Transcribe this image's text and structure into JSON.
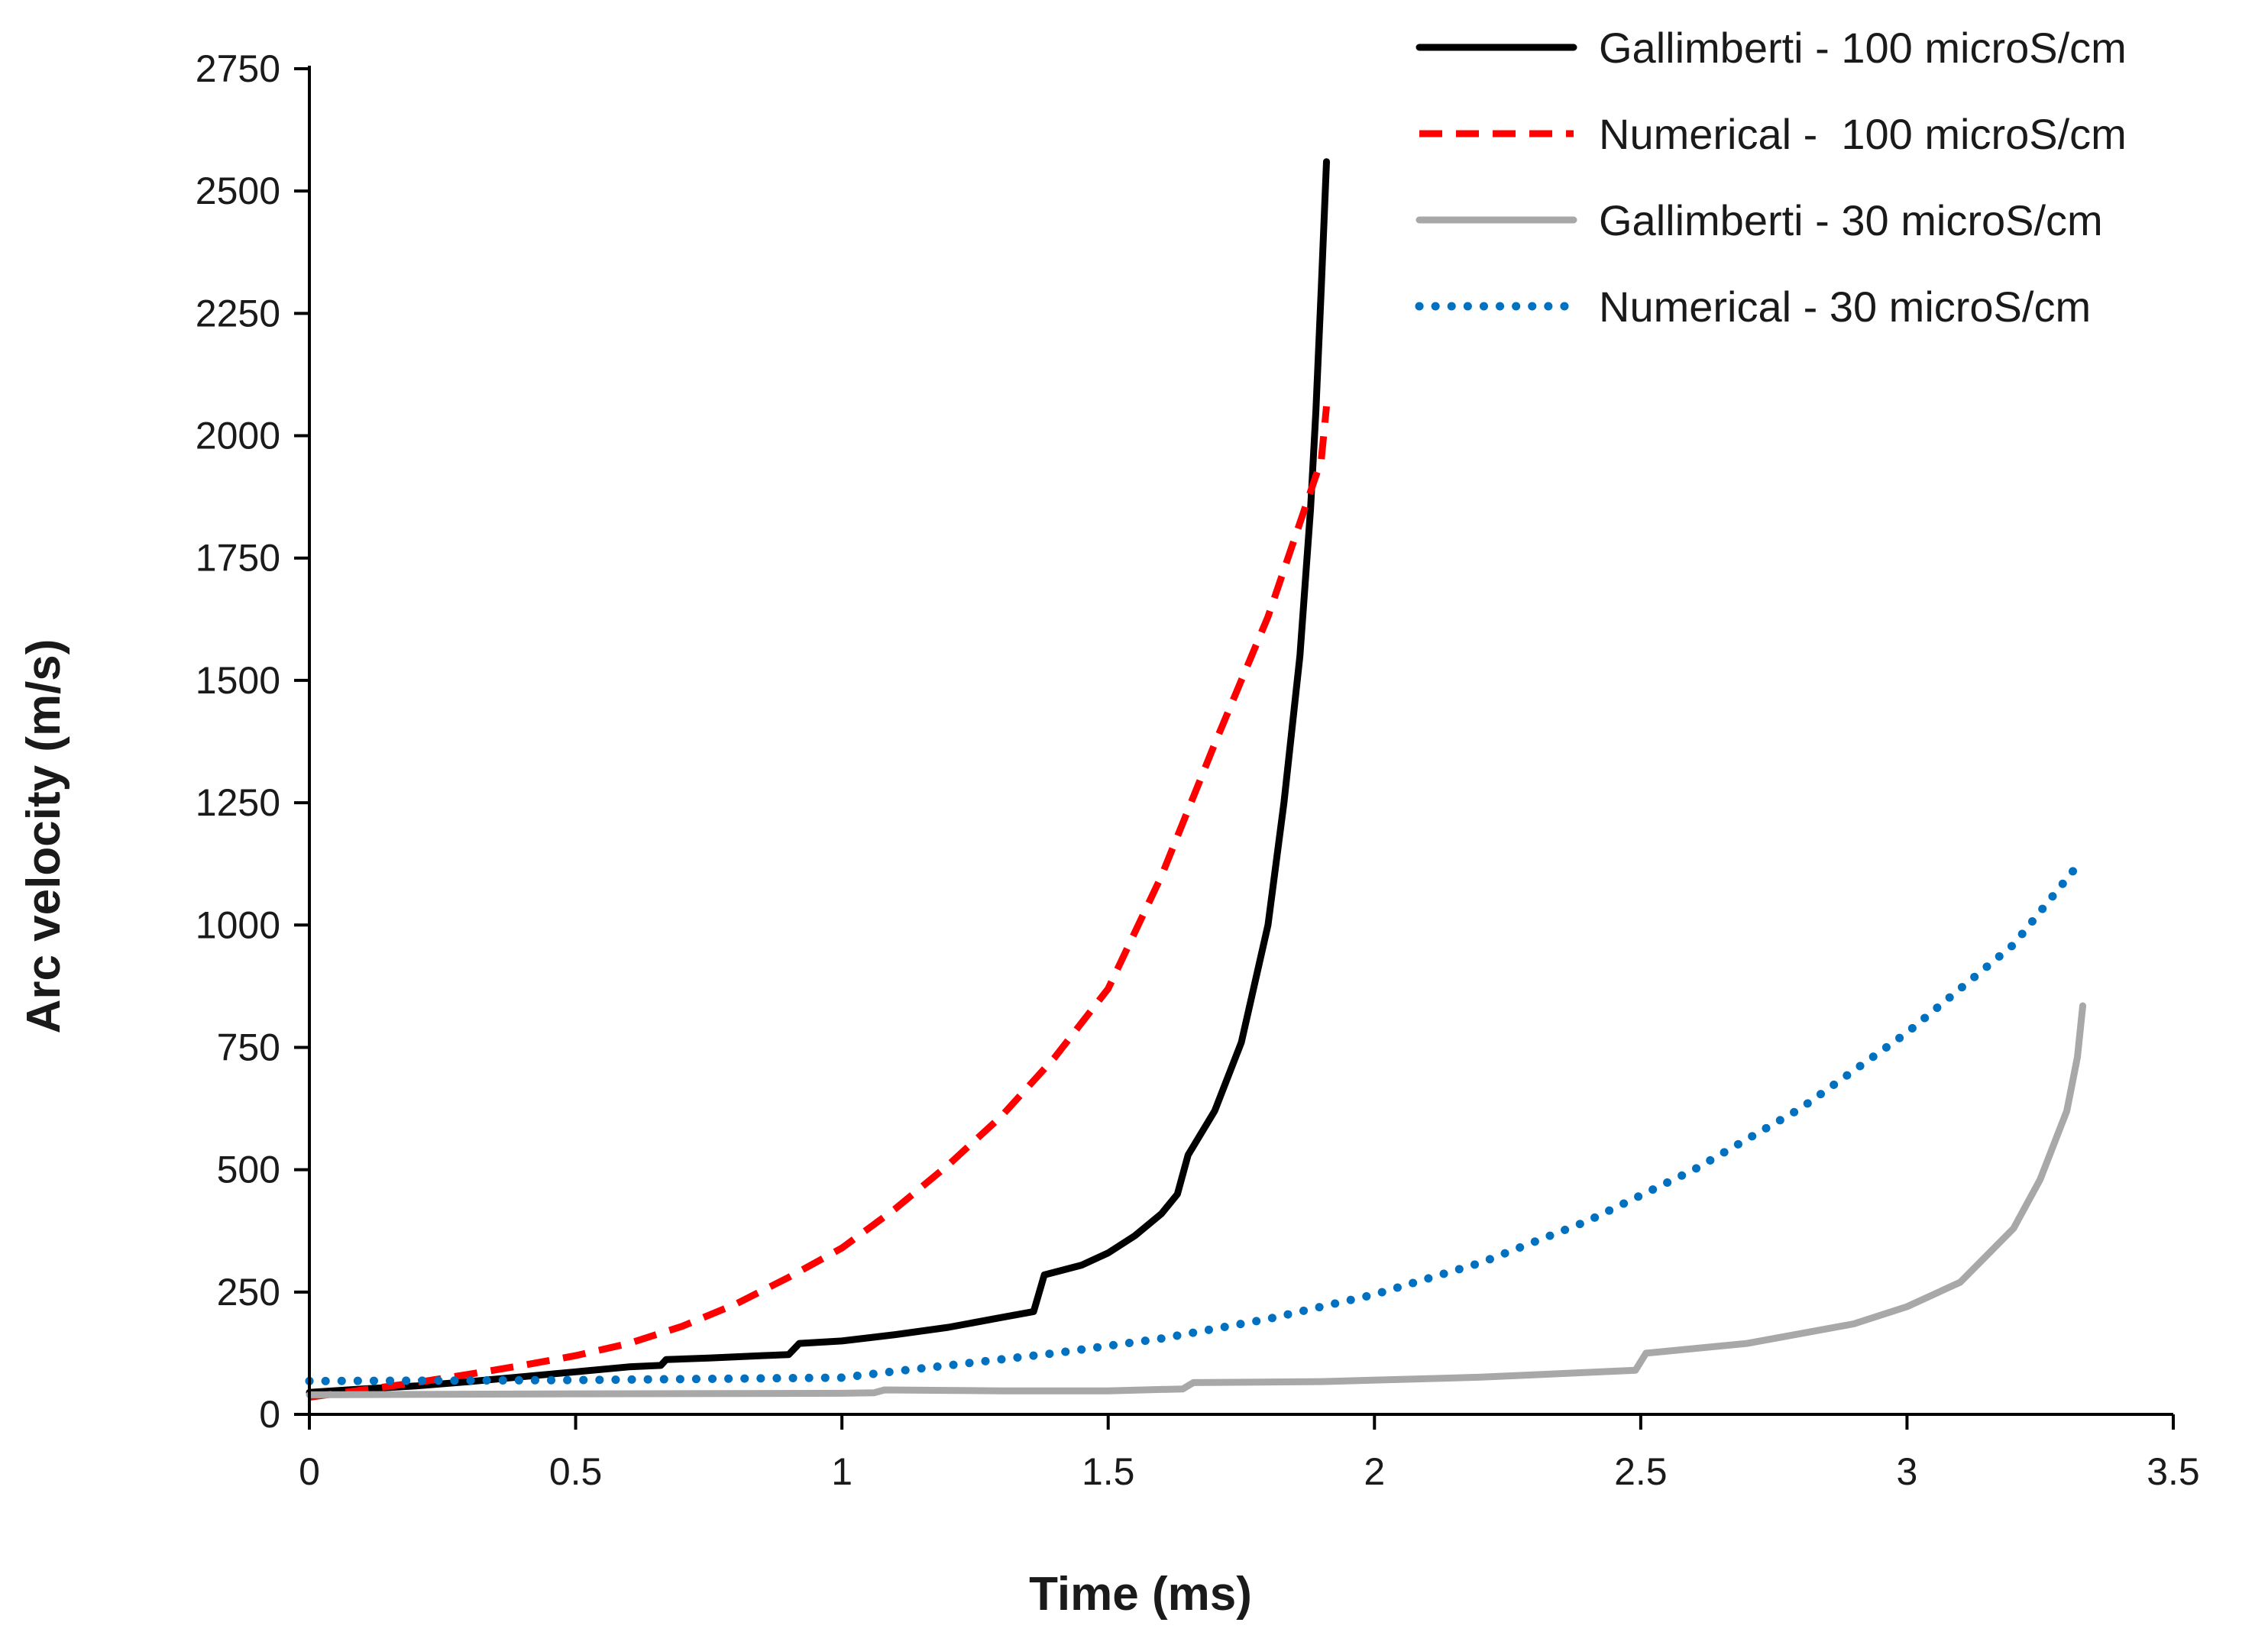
{
  "chart_data": {
    "type": "line",
    "title": "",
    "xlabel": "Time (ms)",
    "ylabel": "Arc velocity (m/s)",
    "xlim": [
      0,
      3.5
    ],
    "ylim": [
      0,
      2750
    ],
    "xticks": [
      0,
      0.5,
      1,
      1.5,
      2,
      2.5,
      3,
      3.5
    ],
    "xtick_labels": [
      "0",
      "0.5",
      "1",
      "1.5",
      "2",
      "2.5",
      "3",
      "3.5"
    ],
    "yticks": [
      0,
      250,
      500,
      750,
      1000,
      1250,
      1500,
      1750,
      2000,
      2250,
      2500,
      2750
    ],
    "ytick_labels": [
      "0",
      "250",
      "500",
      "750",
      "1000",
      "1250",
      "1500",
      "1750",
      "2000",
      "2250",
      "2500",
      "2750"
    ],
    "grid": false,
    "legend_position": "top-right",
    "series": [
      {
        "name": "Gallimberti - 100 microS/cm",
        "color": "#000000",
        "style": "solid",
        "x": [
          0,
          0.1,
          0.2,
          0.3,
          0.4,
          0.5,
          0.6,
          0.66,
          0.67,
          0.75,
          0.85,
          0.9,
          0.92,
          1.0,
          1.1,
          1.2,
          1.3,
          1.36,
          1.38,
          1.45,
          1.5,
          1.55,
          1.6,
          1.63,
          1.65,
          1.7,
          1.75,
          1.8,
          1.83,
          1.86,
          1.88,
          1.89,
          1.9,
          1.91
        ],
        "y": [
          45,
          52,
          58,
          67,
          77,
          87,
          97,
          100,
          112,
          115,
          120,
          122,
          145,
          150,
          163,
          178,
          198,
          210,
          285,
          305,
          330,
          365,
          410,
          450,
          530,
          620,
          760,
          1000,
          1250,
          1550,
          1850,
          2050,
          2300,
          2560
        ]
      },
      {
        "name": "Numerical -  100 microS/cm",
        "color": "#ff0000",
        "style": "dashed",
        "x": [
          0,
          0.1,
          0.2,
          0.3,
          0.4,
          0.5,
          0.6,
          0.7,
          0.8,
          0.9,
          1.0,
          1.1,
          1.2,
          1.3,
          1.4,
          1.5,
          1.6,
          1.7,
          1.8,
          1.9,
          1.91
        ],
        "y": [
          35,
          50,
          65,
          82,
          100,
          120,
          145,
          180,
          225,
          280,
          340,
          420,
          510,
          610,
          730,
          870,
          1100,
          1370,
          1630,
          1950,
          2060
        ]
      },
      {
        "name": "Gallimberti - 30 microS/cm",
        "color": "#a8a8a8",
        "style": "solid",
        "x": [
          0,
          0.5,
          1.0,
          1.06,
          1.08,
          1.3,
          1.5,
          1.64,
          1.66,
          1.9,
          2.2,
          2.49,
          2.51,
          2.7,
          2.9,
          3.0,
          3.1,
          3.2,
          3.25,
          3.3,
          3.32,
          3.33
        ],
        "y": [
          40,
          42,
          43,
          44,
          50,
          48,
          48,
          52,
          65,
          67,
          76,
          90,
          125,
          145,
          185,
          220,
          270,
          380,
          480,
          620,
          730,
          835
        ]
      },
      {
        "name": "Numerical - 30 microS/cm",
        "color": "#0070c0",
        "style": "dotted",
        "x": [
          0,
          0.5,
          1.0,
          1.1,
          1.2,
          1.4,
          1.6,
          1.8,
          2.0,
          2.2,
          2.4,
          2.6,
          2.8,
          3.0,
          3.2,
          3.33
        ],
        "y": [
          68,
          70,
          75,
          88,
          100,
          125,
          155,
          195,
          245,
          310,
          395,
          500,
          625,
          780,
          960,
          1135
        ]
      }
    ]
  }
}
